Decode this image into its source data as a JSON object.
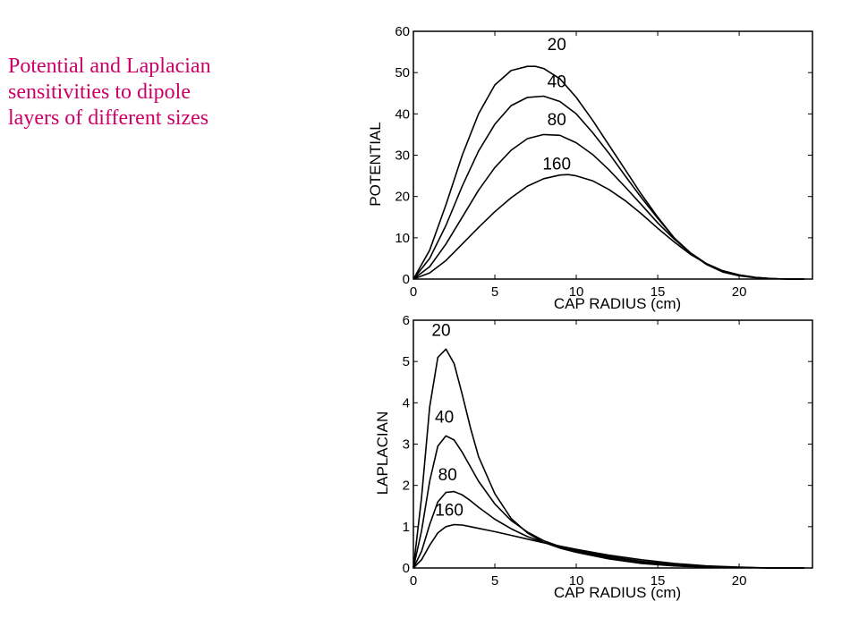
{
  "caption": {
    "line1": "Potential and Laplacian",
    "line2": "sensitivities to dipole",
    "line3": "layers of different sizes",
    "color": "#cc0066"
  },
  "chart_data": [
    {
      "type": "line",
      "xlabel": "CAP RADIUS (cm)",
      "ylabel": "POTENTIAL",
      "xlim": [
        0,
        24.5
      ],
      "ylim": [
        0,
        60
      ],
      "xticks": [
        0,
        5,
        10,
        15,
        20
      ],
      "yticks": [
        0,
        10,
        20,
        30,
        40,
        50,
        60
      ],
      "grid": false,
      "series": [
        {
          "name": "20",
          "x": [
            0,
            1,
            2,
            3,
            4,
            5,
            6,
            7,
            7.5,
            8,
            9,
            10,
            11,
            12,
            13,
            14,
            15,
            16,
            17,
            18,
            19,
            20,
            21,
            22,
            23,
            24
          ],
          "y": [
            0,
            7,
            18,
            30,
            40,
            47,
            50.5,
            51.5,
            51.5,
            51,
            48.5,
            44,
            38.5,
            32.5,
            26.5,
            20.5,
            15,
            10,
            6.3,
            3.5,
            1.7,
            0.8,
            0.3,
            0.1,
            0,
            0
          ]
        },
        {
          "name": "40",
          "x": [
            0,
            1,
            2,
            3,
            4,
            5,
            6,
            7,
            8,
            9,
            10,
            11,
            12,
            13,
            14,
            15,
            16,
            17,
            18,
            19,
            20,
            21,
            22,
            23,
            24
          ],
          "y": [
            0,
            5,
            13,
            22.5,
            31,
            37.5,
            42,
            44,
            44.3,
            43,
            40,
            35.5,
            30.5,
            25,
            19.7,
            14.7,
            10,
            6.4,
            3.7,
            1.9,
            0.9,
            0.4,
            0.1,
            0,
            0
          ]
        },
        {
          "name": "80",
          "x": [
            0,
            1,
            2,
            3,
            4,
            5,
            6,
            7,
            8,
            9,
            10,
            11,
            12,
            13,
            14,
            15,
            16,
            17,
            18,
            19,
            20,
            21,
            22,
            23,
            24
          ],
          "y": [
            0,
            3,
            8.5,
            15,
            21.5,
            27,
            31.2,
            34,
            35,
            34.8,
            33,
            30.2,
            26.5,
            22.3,
            18,
            13.6,
            9.7,
            6.3,
            3.7,
            2,
            1,
            0.4,
            0.1,
            0,
            0
          ]
        },
        {
          "name": "160",
          "x": [
            0,
            1,
            2,
            3,
            4,
            5,
            6,
            7,
            8,
            9,
            9.5,
            10,
            11,
            12,
            13,
            14,
            15,
            16,
            17,
            18,
            19,
            20,
            21,
            22,
            23,
            24
          ],
          "y": [
            0,
            1.5,
            4.5,
            8.5,
            12.5,
            16.3,
            19.7,
            22.5,
            24.3,
            25.2,
            25.3,
            25,
            23.8,
            21.7,
            19,
            15.8,
            12.3,
            9,
            6,
            3.7,
            2,
            1,
            0.4,
            0.1,
            0,
            0
          ]
        }
      ],
      "curve_labels": [
        {
          "series": "20",
          "x": 8.8,
          "y": 55.5
        },
        {
          "series": "40",
          "x": 8.8,
          "y": 46.5
        },
        {
          "series": "80",
          "x": 8.8,
          "y": 37.3
        },
        {
          "series": "160",
          "x": 8.8,
          "y": 26.5
        }
      ]
    },
    {
      "type": "line",
      "xlabel": "CAP RADIUS (cm)",
      "ylabel": "LAPLACIAN",
      "xlim": [
        0,
        24.5
      ],
      "ylim": [
        0,
        6
      ],
      "xticks": [
        0,
        5,
        10,
        15,
        20
      ],
      "yticks": [
        0,
        1,
        2,
        3,
        4,
        5,
        6
      ],
      "grid": false,
      "series": [
        {
          "name": "20",
          "x": [
            0,
            0.5,
            1,
            1.5,
            2,
            2.5,
            3,
            3.5,
            4,
            5,
            6,
            7,
            8,
            9,
            10,
            12,
            14,
            16,
            18,
            20,
            22,
            24
          ],
          "y": [
            0,
            1.7,
            3.9,
            5.1,
            5.3,
            4.95,
            4.2,
            3.4,
            2.7,
            1.8,
            1.2,
            0.85,
            0.62,
            0.48,
            0.38,
            0.22,
            0.11,
            0.05,
            0.02,
            0.01,
            0,
            0
          ]
        },
        {
          "name": "40",
          "x": [
            0,
            0.5,
            1,
            1.5,
            2,
            2.5,
            3,
            3.5,
            4,
            5,
            6,
            7,
            8,
            9,
            10,
            12,
            14,
            16,
            18,
            20,
            22,
            24
          ],
          "y": [
            0,
            0.9,
            2.1,
            2.95,
            3.2,
            3.1,
            2.8,
            2.45,
            2.1,
            1.55,
            1.15,
            0.87,
            0.66,
            0.52,
            0.41,
            0.25,
            0.13,
            0.06,
            0.03,
            0.01,
            0,
            0
          ]
        },
        {
          "name": "80",
          "x": [
            0,
            0.5,
            1,
            1.5,
            2,
            2.5,
            3,
            3.5,
            4,
            5,
            6,
            7,
            8,
            9,
            10,
            12,
            14,
            16,
            18,
            20,
            22,
            24
          ],
          "y": [
            0,
            0.4,
            1.05,
            1.6,
            1.83,
            1.85,
            1.77,
            1.63,
            1.47,
            1.18,
            0.95,
            0.76,
            0.62,
            0.51,
            0.42,
            0.28,
            0.16,
            0.08,
            0.04,
            0.01,
            0,
            0
          ]
        },
        {
          "name": "160",
          "x": [
            0,
            0.5,
            1,
            1.5,
            2,
            2.5,
            3,
            3.5,
            4,
            5,
            6,
            7,
            8,
            9,
            10,
            12,
            14,
            16,
            18,
            20,
            22,
            24
          ],
          "y": [
            0,
            0.2,
            0.55,
            0.85,
            1.0,
            1.05,
            1.04,
            1.0,
            0.96,
            0.88,
            0.79,
            0.7,
            0.61,
            0.53,
            0.45,
            0.31,
            0.2,
            0.11,
            0.05,
            0.02,
            0,
            0
          ]
        }
      ],
      "curve_labels": [
        {
          "series": "20",
          "x": 1.7,
          "y": 5.62
        },
        {
          "series": "40",
          "x": 1.9,
          "y": 3.52
        },
        {
          "series": "80",
          "x": 2.1,
          "y": 2.12
        },
        {
          "series": "160",
          "x": 2.2,
          "y": 1.27
        }
      ]
    }
  ]
}
